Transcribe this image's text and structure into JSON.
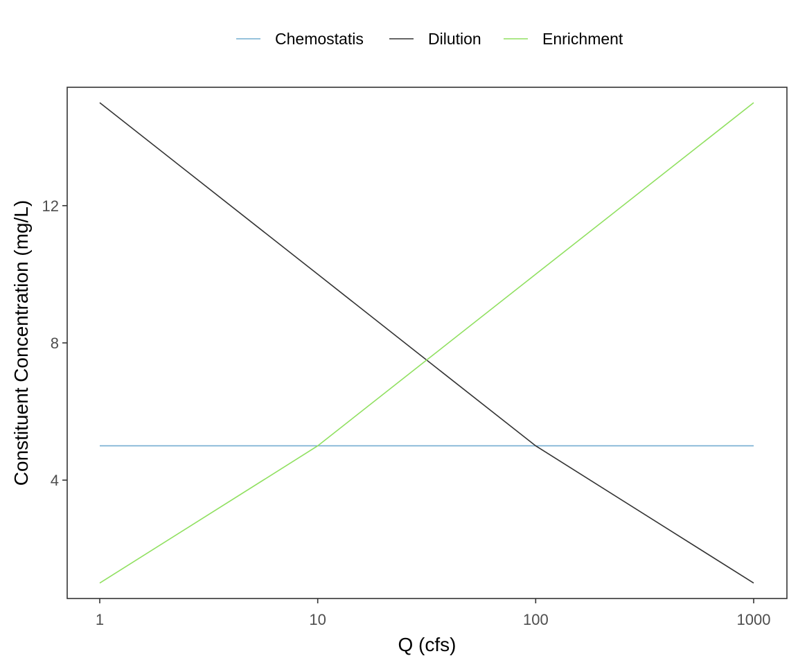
{
  "chart_data": {
    "type": "line",
    "xlabel": "Q (cfs)",
    "ylabel": "Constituent Concentration (mg/L)",
    "x_scale": "log10",
    "xlim": [
      1,
      1000
    ],
    "ylim": [
      0.55,
      15.45
    ],
    "x_ticks": [
      1,
      10,
      100,
      1000
    ],
    "x_tick_labels": [
      "1",
      "10",
      "100",
      "1000"
    ],
    "y_ticks": [
      4,
      8,
      12
    ],
    "y_tick_labels": [
      "4",
      "8",
      "12"
    ],
    "grid": false,
    "legend_position": "top",
    "series": [
      {
        "name": "Chemostatis",
        "color": "#74add1",
        "x": [
          1,
          10,
          100,
          1000
        ],
        "y": [
          5,
          5,
          5,
          5
        ]
      },
      {
        "name": "Dilution",
        "color": "#333333",
        "x": [
          1,
          10,
          31.6,
          100,
          1000
        ],
        "y": [
          15,
          10,
          7.5,
          5,
          1
        ]
      },
      {
        "name": "Enrichment",
        "color": "#90e060",
        "x": [
          1,
          10,
          31.6,
          100,
          1000
        ],
        "y": [
          1,
          5,
          7.5,
          10,
          15
        ]
      }
    ]
  }
}
